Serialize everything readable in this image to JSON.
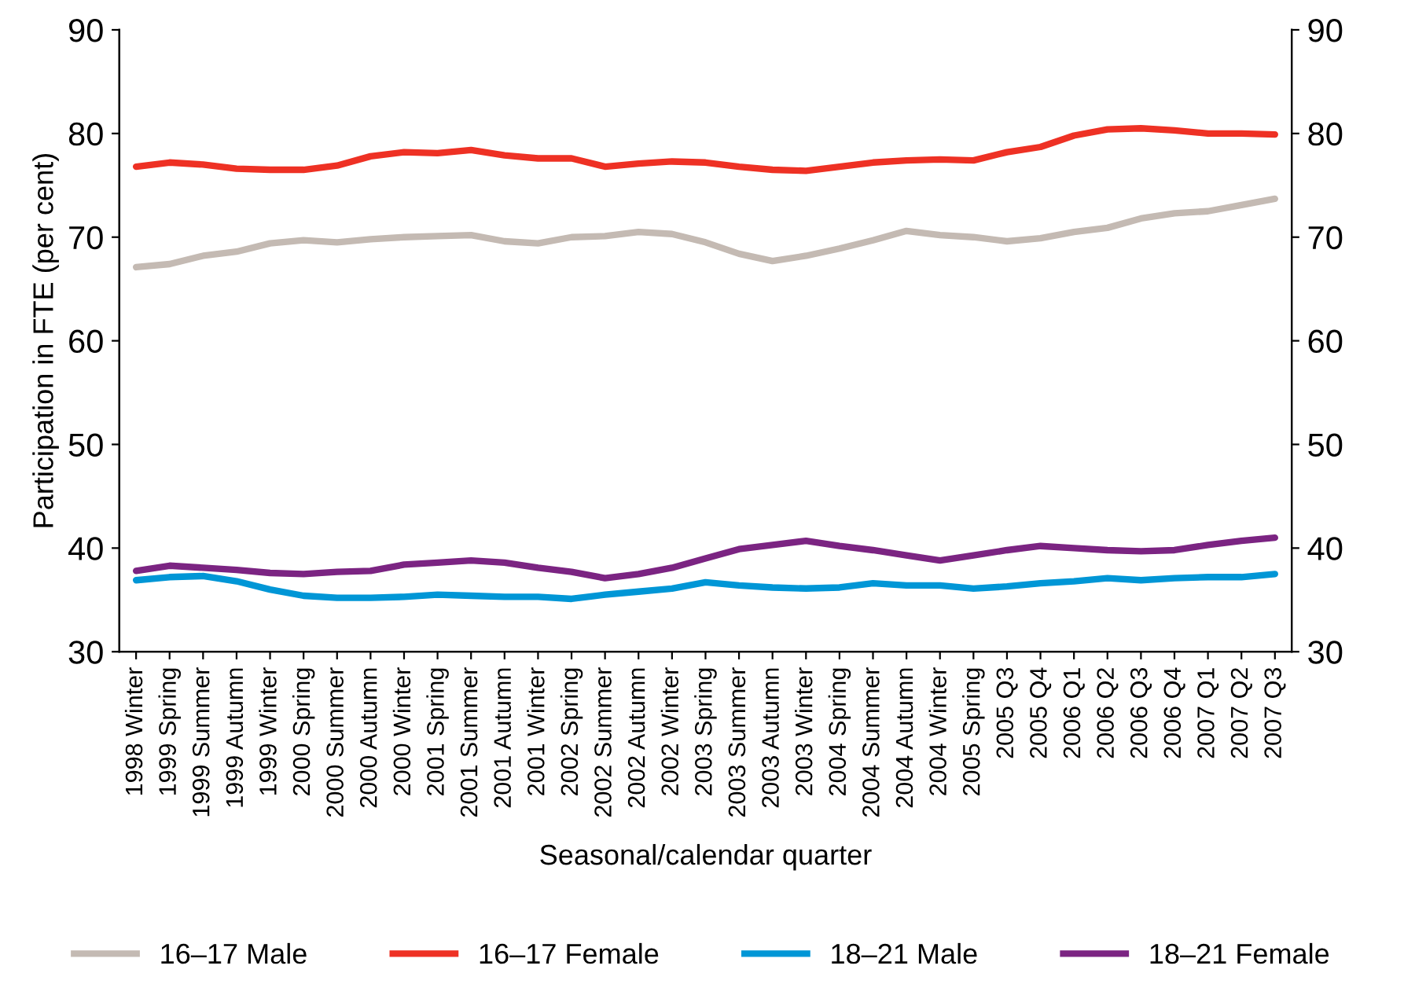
{
  "chart_data": {
    "type": "line",
    "xlabel": "Seasonal/calendar quarter",
    "ylabel": "Participation in FTE (per cent)",
    "categories": [
      "1998 Winter",
      "1999 Spring",
      "1999 Summer",
      "1999 Autumn",
      "1999 Winter",
      "2000 Spring",
      "2000 Summer",
      "2000 Autumn",
      "2000 Winter",
      "2001 Spring",
      "2001 Summer",
      "2001 Autumn",
      "2001 Winter",
      "2002 Spring",
      "2002 Summer",
      "2002 Autumn",
      "2002 Winter",
      "2003 Spring",
      "2003 Summer",
      "2003 Autumn",
      "2003 Winter",
      "2004 Spring",
      "2004 Summer",
      "2004 Autumn",
      "2004 Winter",
      "2005 Spring",
      "2005 Q3",
      "2005 Q4",
      "2006 Q1",
      "2006 Q2",
      "2006 Q3",
      "2006 Q4",
      "2007 Q1",
      "2007 Q2",
      "2007 Q3"
    ],
    "series": [
      {
        "name": "16–17 Male",
        "color": "#c4bab3",
        "values": [
          67.1,
          67.4,
          68.2,
          68.6,
          69.4,
          69.7,
          69.5,
          69.8,
          70.0,
          70.1,
          70.2,
          69.6,
          69.4,
          70.0,
          70.1,
          70.5,
          70.3,
          69.5,
          68.4,
          67.7,
          68.2,
          68.9,
          69.7,
          70.6,
          70.2,
          70.0,
          69.6,
          69.9,
          70.5,
          70.9,
          71.8,
          72.3,
          72.5,
          73.1,
          73.7
        ]
      },
      {
        "name": "16–17 Female",
        "color": "#ee3124",
        "values": [
          76.8,
          77.2,
          77.0,
          76.6,
          76.5,
          76.5,
          76.9,
          77.8,
          78.2,
          78.1,
          78.4,
          77.9,
          77.6,
          77.6,
          76.8,
          77.1,
          77.3,
          77.2,
          76.8,
          76.5,
          76.4,
          76.8,
          77.2,
          77.4,
          77.5,
          77.4,
          78.2,
          78.7,
          79.8,
          80.4,
          80.5,
          80.3,
          80.0,
          80.0,
          79.9
        ]
      },
      {
        "name": "18–21 Male",
        "color": "#0096d6",
        "values": [
          36.9,
          37.2,
          37.3,
          36.8,
          36.0,
          35.4,
          35.2,
          35.2,
          35.3,
          35.5,
          35.4,
          35.3,
          35.3,
          35.1,
          35.5,
          35.8,
          36.1,
          36.7,
          36.4,
          36.2,
          36.1,
          36.2,
          36.6,
          36.4,
          36.4,
          36.1,
          36.3,
          36.6,
          36.8,
          37.1,
          36.9,
          37.1,
          37.2,
          37.2,
          37.5
        ]
      },
      {
        "name": "18–21 Female",
        "color": "#7b2482",
        "values": [
          37.8,
          38.3,
          38.1,
          37.9,
          37.6,
          37.5,
          37.7,
          37.8,
          38.4,
          38.6,
          38.8,
          38.6,
          38.1,
          37.7,
          37.1,
          37.5,
          38.1,
          39.0,
          39.9,
          40.3,
          40.7,
          40.2,
          39.8,
          39.3,
          38.8,
          39.3,
          39.8,
          40.2,
          40.0,
          39.8,
          39.7,
          39.8,
          40.3,
          40.7,
          41.0
        ]
      }
    ],
    "ylim": [
      30,
      90
    ],
    "yticks": [
      30,
      40,
      50,
      60,
      70,
      80,
      90
    ],
    "y2lim": [
      30,
      90
    ],
    "y2ticks": [
      30,
      40,
      50,
      60,
      70,
      80,
      90
    ],
    "legend": "bottom",
    "line_style": "solid",
    "marker": "none"
  }
}
